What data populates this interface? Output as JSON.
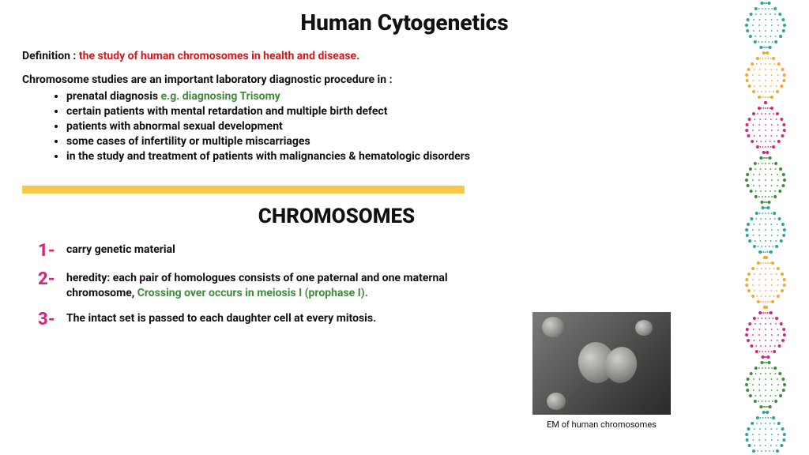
{
  "title": "Human Cytogenetics",
  "definition": {
    "label": "Definition : ",
    "text": "the study of human chromosomes in health and disease."
  },
  "intro": "Chromosome studies are an important laboratory diagnostic procedure in :",
  "bullets": [
    {
      "text": "prenatal diagnosis ",
      "suffix_green": "e.g. diagnosing Trisomy"
    },
    {
      "text": "certain patients with mental retardation and multiple birth defect",
      "suffix_green": ""
    },
    {
      "text": "patients with abnormal sexual development",
      "suffix_green": ""
    },
    {
      "text": "some cases of infertility or multiple miscarriages",
      "suffix_green": ""
    },
    {
      "text": "in the study and treatment of patients with malignancies & hematologic disorders",
      "suffix_green": ""
    }
  ],
  "sub_title": "CHROMOSOMES",
  "points": [
    {
      "num": "1-",
      "text": "carry genetic material",
      "green": ""
    },
    {
      "num": "2-",
      "text": "heredity: each pair of homologues consists of one paternal and one maternal chromosome, ",
      "green": "Crossing over occurs in meiosis I (prophase I)."
    },
    {
      "num": "3-",
      "text": "The intact set is passed to each daughter cell at every mitosis.",
      "green": ""
    }
  ],
  "em_caption": "EM of human chromosomes",
  "colors": {
    "red": "#d4181e",
    "green": "#3e8c3a",
    "pink": "#d6277f",
    "yellow": "#f7c948",
    "dna": [
      "#2aa59a",
      "#f0a830",
      "#d6277f",
      "#3e8c3a"
    ]
  }
}
